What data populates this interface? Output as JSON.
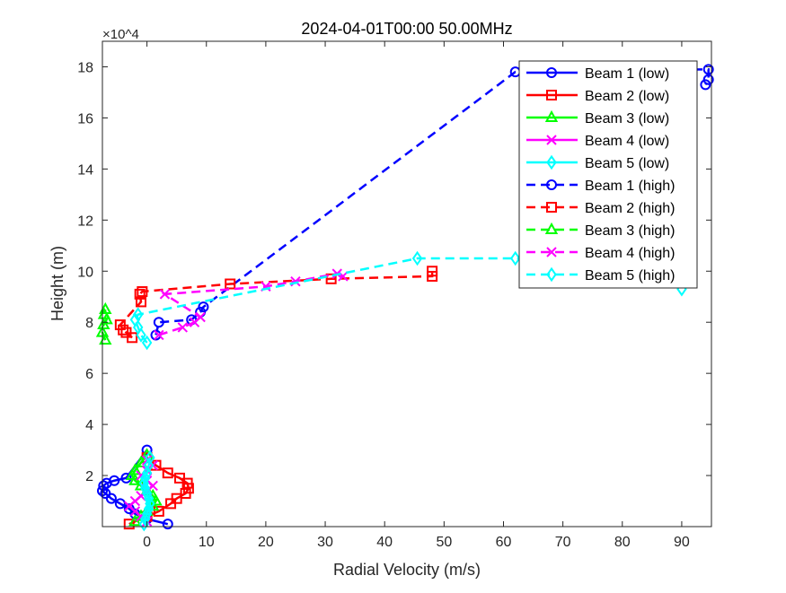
{
  "chart_data": {
    "type": "line",
    "title": "2024-04-01T00:00 50.00MHz",
    "xlabel": "Radial Velocity (m/s)",
    "ylabel": "Height (m)",
    "y_exponent": "×10^4",
    "xlim": [
      -7.5,
      95
    ],
    "ylim": [
      0,
      19
    ],
    "xticks": [
      0,
      10,
      20,
      30,
      40,
      50,
      60,
      70,
      80,
      90
    ],
    "yticks": [
      2,
      4,
      6,
      8,
      10,
      12,
      14,
      16,
      18
    ],
    "x_tick_labels": [
      "0",
      "10",
      "20",
      "30",
      "40",
      "50",
      "60",
      "70",
      "80",
      "90"
    ],
    "y_tick_labels": [
      "2",
      "4",
      "6",
      "8",
      "10",
      "12",
      "14",
      "16",
      "18"
    ],
    "grid": false,
    "legend_position": "top-right",
    "series": [
      {
        "name": "Beam 1 (low)",
        "color": "#0000ff",
        "dash": "solid",
        "marker": "circle",
        "x": [
          3.5,
          0,
          -2,
          -3,
          -4.5,
          -6,
          -7,
          -7.5,
          -7.3,
          -6.8,
          -5.5,
          -3.5,
          0
        ],
        "y": [
          0.1,
          0.3,
          0.5,
          0.7,
          0.9,
          1.1,
          1.3,
          1.4,
          1.6,
          1.7,
          1.8,
          1.9,
          3.0
        ]
      },
      {
        "name": "Beam 2 (low)",
        "color": "#ff0000",
        "dash": "solid",
        "marker": "square",
        "x": [
          -3,
          0,
          2,
          4,
          5,
          6.5,
          7,
          6.8,
          5.5,
          3.5,
          1.5,
          0
        ],
        "y": [
          0.1,
          0.4,
          0.6,
          0.9,
          1.1,
          1.3,
          1.5,
          1.7,
          1.9,
          2.1,
          2.4,
          2.7
        ]
      },
      {
        "name": "Beam 3 (low)",
        "color": "#00ff00",
        "dash": "solid",
        "marker": "triangle",
        "x": [
          -2,
          -1,
          0,
          1,
          1.5,
          1,
          0,
          -1,
          -2,
          -2.5,
          -2,
          -1,
          0
        ],
        "y": [
          0.2,
          0.4,
          0.6,
          0.8,
          1.0,
          1.2,
          1.4,
          1.6,
          1.8,
          2.0,
          2.2,
          2.5,
          2.8
        ]
      },
      {
        "name": "Beam 4 (low)",
        "color": "#ff00ff",
        "dash": "solid",
        "marker": "x",
        "x": [
          0,
          -1,
          -2,
          -3,
          -2,
          -1,
          0,
          1,
          0,
          -1,
          0,
          1,
          0
        ],
        "y": [
          0.2,
          0.4,
          0.6,
          0.8,
          1.0,
          1.2,
          1.4,
          1.6,
          1.8,
          2.0,
          2.2,
          2.4,
          2.6
        ]
      },
      {
        "name": "Beam 5 (low)",
        "color": "#00ffff",
        "dash": "solid",
        "marker": "diamond",
        "x": [
          -0.5,
          -0.3,
          0,
          0.3,
          0.5,
          0.3,
          0,
          -0.3,
          -0.5,
          -0.3,
          0,
          0.3,
          0.5
        ],
        "y": [
          0.1,
          0.3,
          0.5,
          0.7,
          0.9,
          1.1,
          1.3,
          1.5,
          1.7,
          1.9,
          2.1,
          2.4,
          2.7
        ]
      },
      {
        "name": "Beam 1 (high)",
        "color": "#0000ff",
        "dash": "dashed",
        "marker": "circle",
        "x": [
          1.5,
          2,
          7.5,
          9,
          9.5,
          62,
          94.5,
          94.5,
          94
        ],
        "y": [
          7.5,
          8.0,
          8.1,
          8.4,
          8.6,
          17.8,
          17.9,
          17.5,
          17.3
        ]
      },
      {
        "name": "Beam 2 (high)",
        "color": "#ff0000",
        "dash": "dashed",
        "marker": "square",
        "x": [
          -2.5,
          -3.5,
          -4,
          -4.5,
          -1,
          -1.2,
          -0.8,
          14,
          31,
          48,
          48
        ],
        "y": [
          7.4,
          7.6,
          7.7,
          7.9,
          8.8,
          9.1,
          9.2,
          9.5,
          9.7,
          9.8,
          10.0
        ]
      },
      {
        "name": "Beam 3 (high)",
        "color": "#00ff00",
        "dash": "dashed",
        "marker": "triangle",
        "x": [
          -7,
          -7.5,
          -7.3,
          -6.8,
          -7.2,
          -7
        ],
        "y": [
          7.3,
          7.6,
          7.9,
          8.1,
          8.3,
          8.5
        ]
      },
      {
        "name": "Beam 4 (high)",
        "color": "#ff00ff",
        "dash": "dashed",
        "marker": "x",
        "x": [
          2,
          6,
          8,
          9,
          3,
          20,
          25,
          32,
          33
        ],
        "y": [
          7.5,
          7.8,
          8.0,
          8.2,
          9.1,
          9.4,
          9.6,
          9.9,
          9.8
        ]
      },
      {
        "name": "Beam 5 (high)",
        "color": "#00ffff",
        "dash": "dashed",
        "marker": "diamond",
        "x": [
          0,
          -1,
          -1.5,
          -2,
          -1.5,
          45.5,
          62,
          90,
          90
        ],
        "y": [
          7.2,
          7.5,
          7.8,
          8.1,
          8.3,
          10.5,
          10.5,
          10.0,
          9.3
        ]
      }
    ]
  }
}
